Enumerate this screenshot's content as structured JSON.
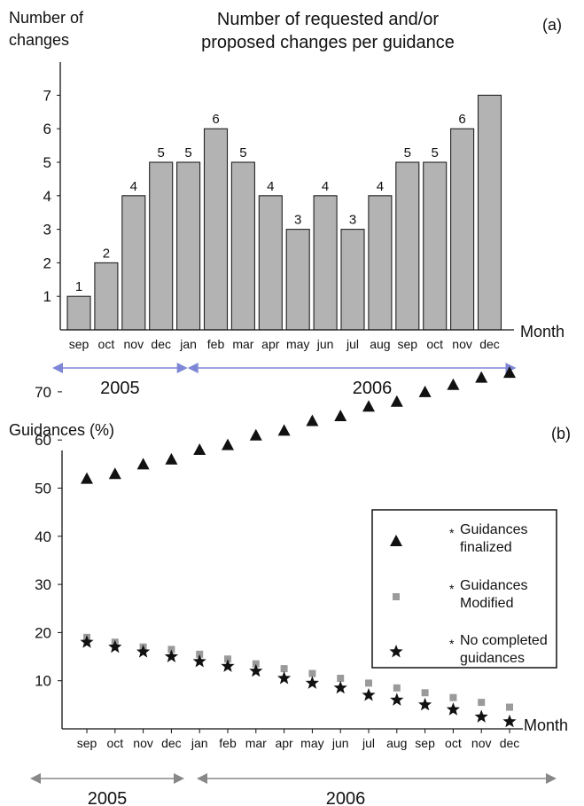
{
  "chart_data": [
    {
      "panel": "(a)",
      "type": "bar",
      "title": "Number of requested and/or proposed changes per guidance",
      "title_lines": [
        "Number of requested and/or",
        "proposed changes per guidance"
      ],
      "ylabel": "Number of changes",
      "ylabel_lines": [
        "Number of",
        "changes"
      ],
      "xlabel": "Month",
      "ylim": [
        0,
        7
      ],
      "yticks": [
        1,
        2,
        3,
        4,
        5,
        6,
        7
      ],
      "categories": [
        "sep",
        "oct",
        "nov",
        "dec",
        "jan",
        "feb",
        "mar",
        "apr",
        "may",
        "jun",
        "jul",
        "aug",
        "sep",
        "oct",
        "nov",
        "dec"
      ],
      "values": [
        1,
        2,
        4,
        5,
        5,
        6,
        5,
        4,
        3,
        4,
        3,
        4,
        5,
        5,
        6,
        7
      ],
      "data_labels": [
        "1",
        "2",
        "4",
        "5",
        "5",
        "6",
        "5",
        "4",
        "3",
        "4",
        "3",
        "4",
        "5",
        "5",
        "6",
        ""
      ],
      "bar_color": "#b3b3b3",
      "year_spans": [
        {
          "label": "2005",
          "from": "sep",
          "to": "dec"
        },
        {
          "label": "2006",
          "from": "jan",
          "to": "dec"
        }
      ],
      "arrow_color": "#7f86d6"
    },
    {
      "panel": "(b)",
      "type": "scatter",
      "ylabel": "Guidances (%)",
      "xlabel": "Month",
      "ylim": [
        0,
        75
      ],
      "yticks": [
        10,
        20,
        30,
        40,
        50,
        60,
        70
      ],
      "categories": [
        "sep",
        "oct",
        "nov",
        "dec",
        "jan",
        "feb",
        "mar",
        "apr",
        "may",
        "jun",
        "jul",
        "aug",
        "sep",
        "oct",
        "nov",
        "dec"
      ],
      "series": [
        {
          "name": "Guidances finalized",
          "legend_lines": [
            "Guidances",
            "finalized"
          ],
          "marker": "triangle",
          "color": "#111111",
          "values": [
            52,
            53,
            55,
            56,
            58,
            59,
            61,
            62,
            64,
            65,
            67,
            68,
            70,
            71.5,
            73,
            74
          ]
        },
        {
          "name": "Guidances Modified",
          "legend_lines": [
            "Guidances",
            "Modified"
          ],
          "marker": "square",
          "color": "#9a9a9a",
          "values": [
            19,
            18,
            17,
            16.5,
            15.5,
            14.5,
            13.5,
            12.5,
            11.5,
            10.5,
            9.5,
            8.5,
            7.5,
            6.5,
            5.5,
            4.5
          ]
        },
        {
          "name": "No completed guidances",
          "legend_lines": [
            "No completed",
            "guidances"
          ],
          "marker": "star",
          "color": "#111111",
          "values": [
            18,
            17,
            16,
            15,
            14,
            13,
            12,
            10.5,
            9.5,
            8.5,
            7,
            6,
            5,
            4,
            2.5,
            1.5
          ]
        }
      ],
      "year_spans": [
        {
          "label": "2005",
          "from": "sep",
          "to": "dec"
        },
        {
          "label": "2006",
          "from": "jan",
          "to": "dec"
        }
      ],
      "arrow_color": "#888888"
    }
  ]
}
